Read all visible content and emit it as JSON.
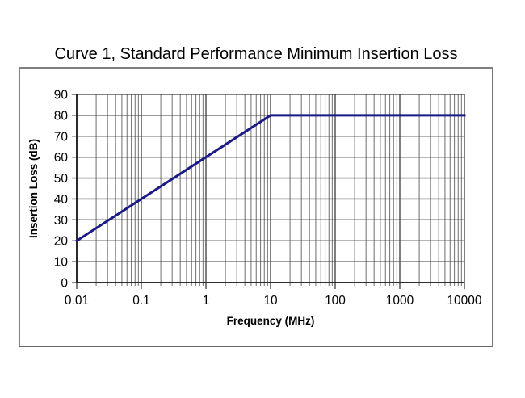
{
  "title": "Curve 1, Standard Performance Minimum Insertion Loss",
  "colors": {
    "curve": "#1a1a87",
    "grid_major": "#3b3b3b",
    "grid_minor": "#6e6e6e",
    "axis": "#1a1a1a",
    "box_border": "#7f7f7f",
    "text": "#000000",
    "background": "#ffffff"
  },
  "chart_data": {
    "type": "line",
    "title": "Curve 1, Standard Performance Minimum Insertion Loss",
    "xlabel": "Frequency (MHz)",
    "ylabel": "Insertion Loss (dB)",
    "x_scale": "log",
    "y_scale": "linear",
    "xlim": [
      0.01,
      10000
    ],
    "ylim": [
      0,
      90
    ],
    "grid": "on (log minor verticals + major horizontals every 10 dB)",
    "legend_position": "none",
    "x_ticks": [
      0.01,
      0.1,
      1,
      10,
      100,
      1000,
      10000
    ],
    "x_tick_labels": [
      "0.01",
      "0.1",
      "1",
      "10",
      "100",
      "1000",
      "10000"
    ],
    "y_ticks": [
      0,
      10,
      20,
      30,
      40,
      50,
      60,
      70,
      80,
      90
    ],
    "y_tick_labels": [
      "0",
      "10",
      "20",
      "30",
      "40",
      "50",
      "60",
      "70",
      "80",
      "90"
    ],
    "series": [
      {
        "name": "Curve 1 minimum insertion loss",
        "color": "#1a1a87",
        "stroke_width": 3,
        "points": [
          [
            0.01,
            20
          ],
          [
            10,
            80
          ],
          [
            10000,
            80
          ]
        ],
        "note": "rises 20 dB per decade from (0.01 MHz, 20 dB) to (10 MHz, 80 dB), then flat at 80 dB to 10000 MHz"
      }
    ]
  }
}
